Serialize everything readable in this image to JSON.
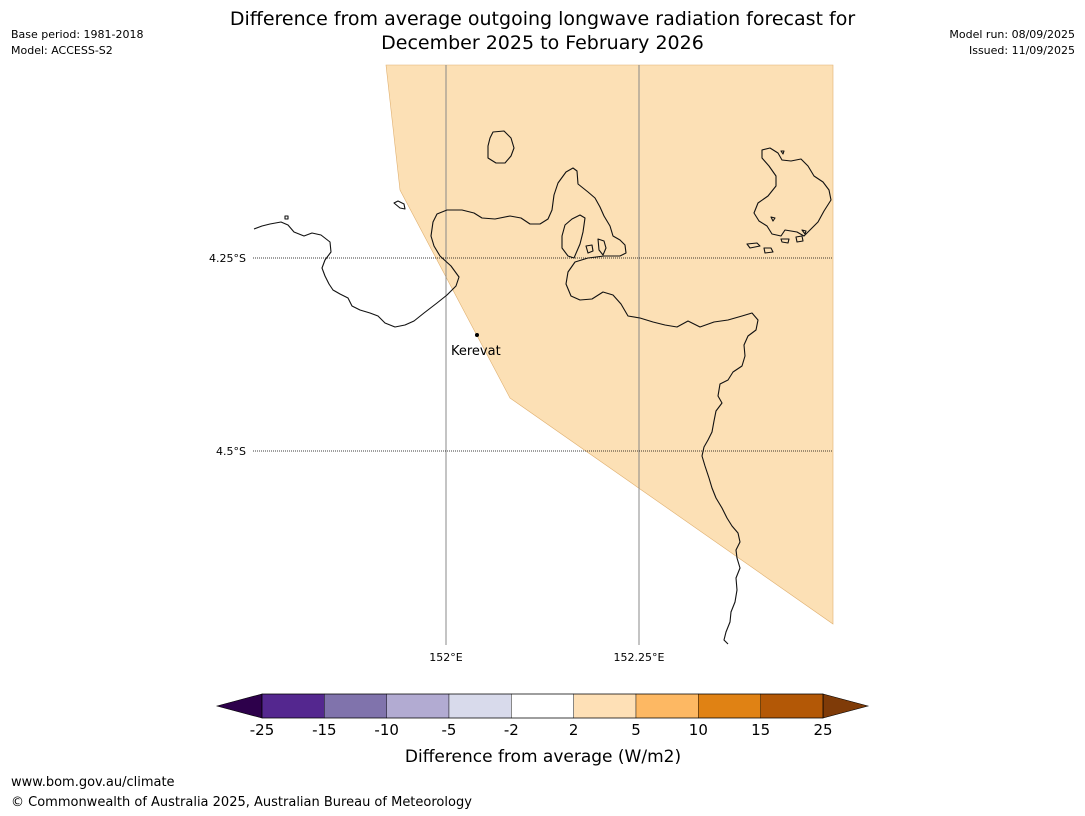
{
  "title": {
    "line1": "Difference from average outgoing longwave radiation forecast for",
    "line2": "December 2025 to February 2026"
  },
  "meta": {
    "base_period": "Base period: 1981-2018",
    "model": "Model: ACCESS-S2",
    "model_run": "Model run: 08/09/2025",
    "issued": "Issued: 11/09/2025"
  },
  "map": {
    "region_fill_color": "#fce0b5",
    "region_category": "2 to 5",
    "lat_labels": [
      "4.25°S",
      "4.5°S"
    ],
    "lon_labels": [
      "152°E",
      "152.25°E"
    ],
    "place": {
      "name": "Kerevat"
    }
  },
  "legend": {
    "title": "Difference from average (W/m2)",
    "tick_labels": [
      "-25",
      "-15",
      "-10",
      "-5",
      "-2",
      "2",
      "5",
      "10",
      "15",
      "25"
    ],
    "colors": [
      "#54278f",
      "#8073ac",
      "#b2abd2",
      "#d8daeb",
      "#ffffff",
      "#fee0b6",
      "#fdb863",
      "#e08214",
      "#b35806"
    ],
    "extend_low_color": "#2d004b",
    "extend_high_color": "#7f3b08"
  },
  "footer": {
    "url": "www.bom.gov.au/climate",
    "copyright": "© Commonwealth of Australia 2025, Australian Bureau of Meteorology"
  }
}
